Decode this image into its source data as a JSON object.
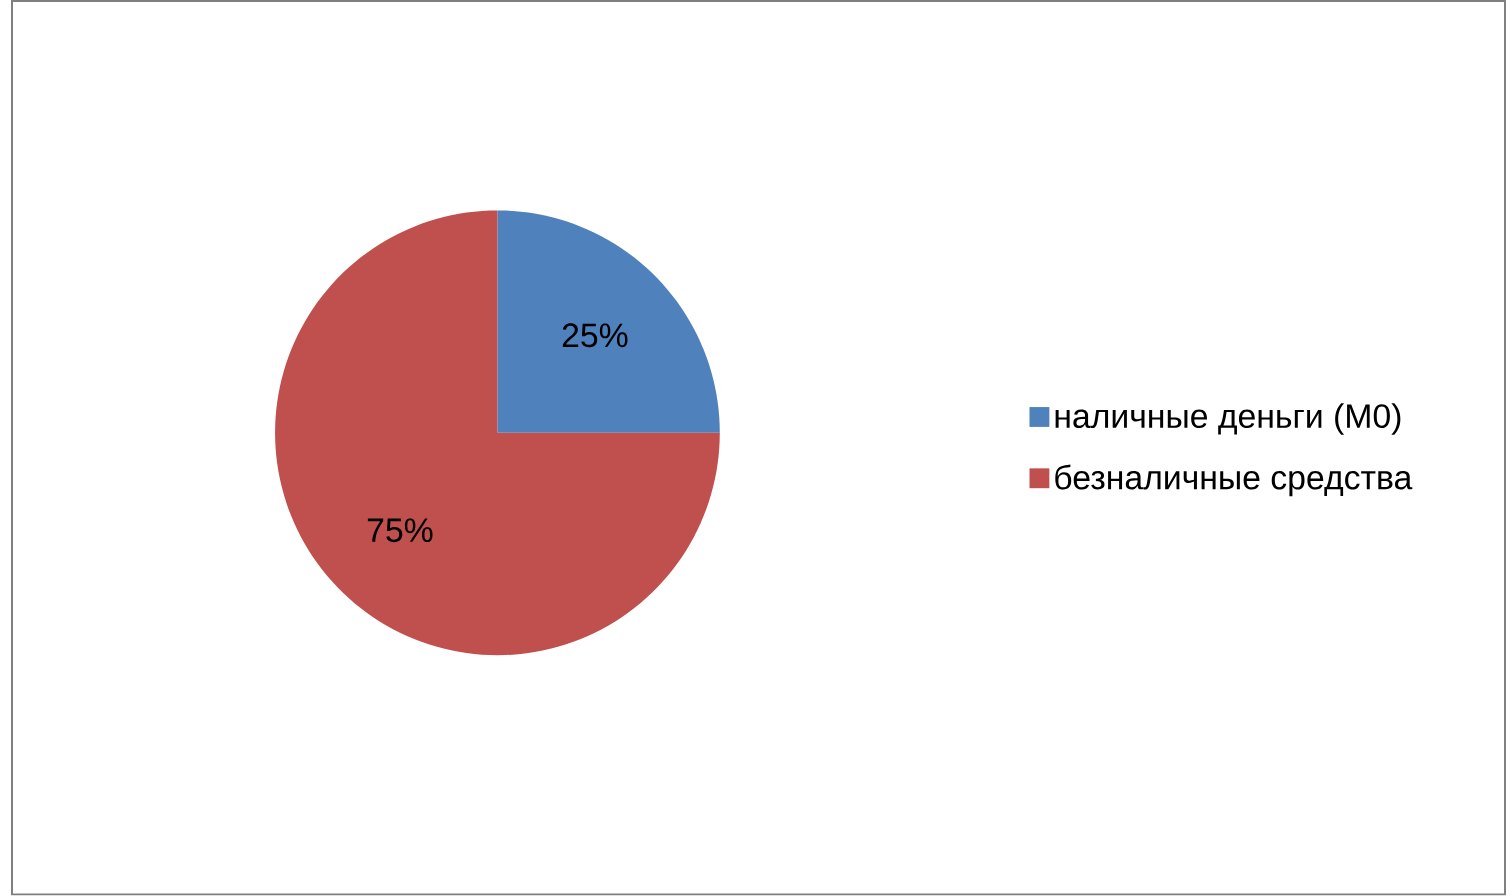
{
  "chart_data": {
    "type": "pie",
    "categories": [
      "наличные деньги (M0)",
      "безналичные средства"
    ],
    "values": [
      25,
      75
    ],
    "colors": [
      "#4f81bd",
      "#c0504d"
    ],
    "value_labels": [
      "25%",
      "75%"
    ],
    "legend": "right"
  }
}
